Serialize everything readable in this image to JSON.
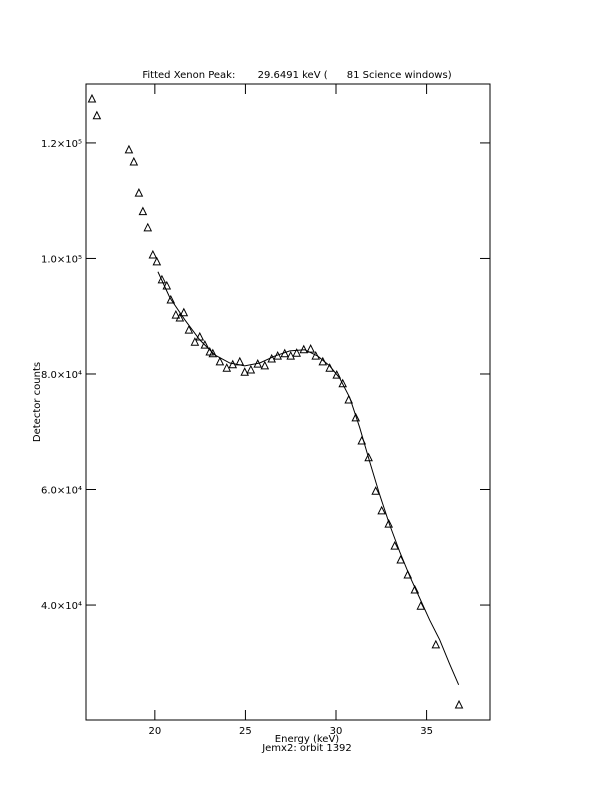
{
  "chart_data": {
    "type": "scatter",
    "title": "Fitted Xenon Peak:       29.6491 keV (      81 Science windows)",
    "x_label": "Energy (keV)",
    "subtitle": "Jemx2: orbit 1392",
    "y_label": "Detector counts",
    "xlim": [
      16.2,
      38.5
    ],
    "ylim": [
      20100,
      130200
    ],
    "xticks": [
      20,
      25,
      30,
      35
    ],
    "yticks": [
      {
        "value": 40000,
        "label": "4.0×10⁴"
      },
      {
        "value": 60000,
        "label": "6.0×10⁴"
      },
      {
        "value": 80000,
        "label": "8.0×10⁴"
      },
      {
        "value": 100000,
        "label": "1.0×10⁵"
      },
      {
        "value": 120000,
        "label": "1.2×10⁵"
      }
    ],
    "series": [
      {
        "type": "scatter",
        "color": "#000000",
        "x": [
          16.53,
          16.8,
          18.57,
          18.84,
          19.12,
          19.34,
          19.61,
          19.89,
          20.11,
          20.39,
          20.66,
          20.88,
          21.16,
          21.38,
          21.6,
          21.88,
          22.21,
          22.48,
          22.76,
          23.03,
          23.2,
          23.59,
          23.97,
          24.3,
          24.69,
          24.96,
          25.3,
          25.68,
          26.07,
          26.45,
          26.78,
          27.17,
          27.5,
          27.83,
          28.22,
          28.6,
          28.88,
          29.27,
          29.65,
          30.04,
          30.37,
          30.7,
          31.09,
          31.42,
          31.8,
          32.19,
          32.52,
          32.91,
          33.24,
          33.57,
          33.96,
          34.35,
          34.68,
          35.51,
          36.79
        ],
        "values": [
          127600,
          124700,
          118800,
          116700,
          111300,
          108100,
          105300,
          100600,
          99400,
          96300,
          95240,
          92800,
          90200,
          89700,
          90600,
          87600,
          85500,
          86400,
          85000,
          83800,
          83500,
          82100,
          81000,
          81600,
          82100,
          80300,
          80700,
          81700,
          81400,
          82600,
          83100,
          83500,
          83100,
          83600,
          84200,
          84300,
          83100,
          82100,
          81000,
          79800,
          78300,
          75500,
          72400,
          68400,
          65500,
          59700,
          56300,
          54000,
          50200,
          47800,
          45200,
          42600,
          39800,
          33100,
          22700
        ]
      },
      {
        "type": "line",
        "color": "#000000",
        "x": [
          20.17,
          20.83,
          21.65,
          22.48,
          23.31,
          24.14,
          24.96,
          25.79,
          26.62,
          27.45,
          28.27,
          28.99,
          29.65,
          30.2,
          30.76,
          31.31,
          31.86,
          32.41,
          32.96,
          33.52,
          34.07,
          34.62,
          35.17,
          35.72,
          36.27,
          36.77
        ],
        "values": [
          97700,
          93200,
          89400,
          85900,
          83300,
          81900,
          81400,
          81900,
          83100,
          84000,
          84200,
          83100,
          81400,
          79300,
          75900,
          70700,
          64800,
          59100,
          53900,
          49200,
          45000,
          41200,
          37400,
          34000,
          29800,
          26200
        ]
      }
    ]
  }
}
